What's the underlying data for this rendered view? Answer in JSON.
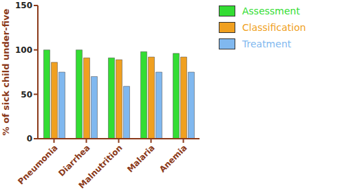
{
  "chart_data": {
    "type": "bar",
    "y_label": "% of sick child under-five",
    "categories": [
      "Pneumonia",
      "Diarrhea",
      "Malnutrition",
      "Malaria",
      "Anemia"
    ],
    "series": [
      {
        "name": "Assessment",
        "color": "#33dd33",
        "values": [
          100,
          100,
          91,
          98,
          96
        ]
      },
      {
        "name": "Classification",
        "color": "#f0a020",
        "values": [
          86,
          91,
          89,
          92,
          92
        ]
      },
      {
        "name": "Treatment",
        "color": "#80b8ef",
        "values": [
          75,
          70,
          59,
          75,
          75
        ]
      }
    ],
    "ylim": [
      0,
      150
    ],
    "yticks": [
      0,
      50,
      100,
      150
    ],
    "grid": false,
    "legend": "upper right"
  }
}
